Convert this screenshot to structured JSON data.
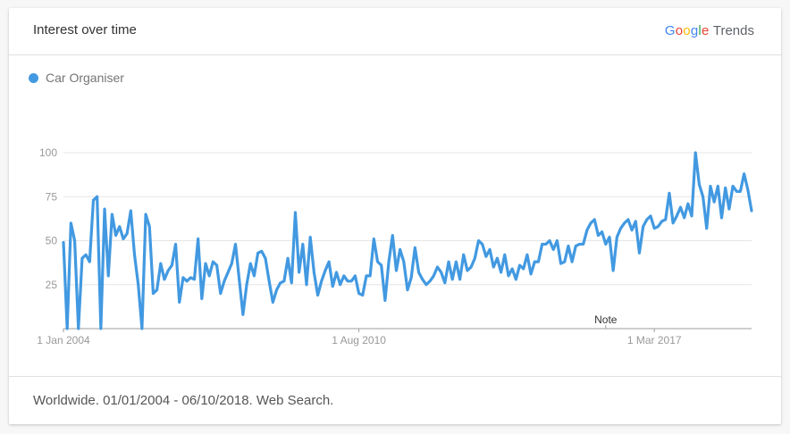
{
  "header": {
    "title": "Interest over time",
    "brand": {
      "letters": [
        "G",
        "o",
        "o",
        "g",
        "l",
        "e"
      ],
      "letter_colors": [
        "#4285F4",
        "#EA4335",
        "#FBBC05",
        "#4285F4",
        "#34A853",
        "#EA4335"
      ],
      "suffix": "Trends"
    }
  },
  "footer": {
    "text": "Worldwide. 01/01/2004 - 06/10/2018. Web Search."
  },
  "colors": {
    "series": "#4299e1",
    "grid": "#e6e6e6",
    "axis": "#9e9e9e",
    "tick_text": "#999999",
    "note_text": "#333333"
  },
  "chart_data": {
    "type": "line",
    "title": "Interest over time",
    "xlabel": "",
    "ylabel": "",
    "ylim": [
      0,
      100
    ],
    "y_ticks": [
      25,
      50,
      75,
      100
    ],
    "x_ticks": [
      "1 Jan 2004",
      "1 Aug 2010",
      "1 Mar 2017"
    ],
    "x_tick_positions": [
      0,
      79,
      158
    ],
    "note": {
      "label": "Note",
      "index": 145
    },
    "grid": true,
    "legend_position": "top-left",
    "series": [
      {
        "name": "Car Organiser",
        "color": "#4299e1",
        "values": [
          49,
          0,
          60,
          50,
          0,
          40,
          42,
          38,
          73,
          75,
          0,
          68,
          30,
          65,
          53,
          58,
          51,
          54,
          67,
          42,
          25,
          0,
          65,
          58,
          20,
          22,
          37,
          28,
          33,
          36,
          48,
          15,
          29,
          27,
          29,
          28,
          51,
          17,
          37,
          30,
          38,
          36,
          20,
          27,
          32,
          37,
          48,
          28,
          8,
          25,
          37,
          30,
          43,
          44,
          40,
          27,
          15,
          22,
          26,
          27,
          40,
          26,
          66,
          32,
          48,
          25,
          52,
          32,
          19,
          27,
          33,
          38,
          24,
          32,
          25,
          30,
          27,
          27,
          30,
          20,
          19,
          30,
          30,
          51,
          38,
          36,
          16,
          38,
          53,
          33,
          45,
          38,
          22,
          29,
          46,
          32,
          28,
          25,
          27,
          30,
          35,
          32,
          26,
          38,
          28,
          38,
          28,
          42,
          33,
          35,
          40,
          50,
          48,
          41,
          45,
          35,
          40,
          32,
          42,
          30,
          34,
          28,
          36,
          34,
          42,
          31,
          38,
          38,
          48,
          48,
          50,
          45,
          50,
          37,
          38,
          47,
          38,
          47,
          48,
          48,
          56,
          60,
          62,
          53,
          55,
          48,
          52,
          33,
          52,
          57,
          60,
          62,
          56,
          61,
          43,
          58,
          62,
          64,
          57,
          58,
          61,
          62,
          77,
          60,
          64,
          69,
          63,
          71,
          64,
          100,
          82,
          75,
          57,
          81,
          72,
          81,
          63,
          80,
          68,
          81,
          78,
          78,
          88,
          79,
          67
        ]
      }
    ]
  }
}
